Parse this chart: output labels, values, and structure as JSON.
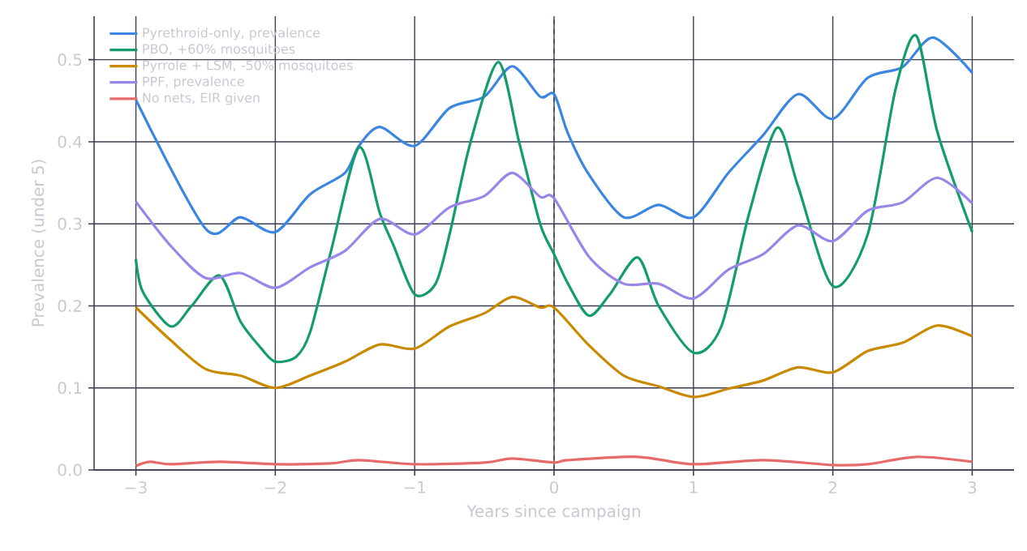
{
  "chart_data": {
    "type": "line",
    "xlabel": "Years since campaign",
    "ylabel": "Prevalence (under 5)",
    "xlim": [
      -3.3,
      3.3
    ],
    "ylim": [
      0,
      0.553
    ],
    "xticks": [
      {
        "value": -3,
        "label": "−3"
      },
      {
        "value": -2,
        "label": "−2"
      },
      {
        "value": -1,
        "label": "−1"
      },
      0,
      1,
      2,
      3
    ],
    "yticks": [
      {
        "value": 0,
        "label": "0.0"
      },
      0.1,
      0.2,
      0.3,
      0.4,
      0.5
    ],
    "grid": true,
    "legend": "top left",
    "line_style": "solid",
    "marker": "none",
    "ref_lines": [
      {
        "axis": "x",
        "value": 0,
        "color": "#3b3f50",
        "line_style": "dashed"
      }
    ],
    "series": [
      {
        "name": "Pyrethroid-only, prevalence",
        "color": "#3a86e0",
        "x": [
          -3,
          -2.5,
          -2.25,
          -2,
          -1.75,
          -1.5,
          -1.4,
          -1.25,
          -1,
          -0.75,
          -0.5,
          -0.3,
          -0.1,
          0,
          0.1,
          0.25,
          0.5,
          0.75,
          1,
          1.25,
          1.5,
          1.75,
          2,
          2.25,
          2.5,
          2.72,
          3
        ],
        "values": [
          0.451,
          0.294,
          0.308,
          0.29,
          0.336,
          0.362,
          0.395,
          0.418,
          0.395,
          0.441,
          0.455,
          0.492,
          0.455,
          0.458,
          0.41,
          0.36,
          0.308,
          0.323,
          0.308,
          0.362,
          0.408,
          0.458,
          0.428,
          0.478,
          0.491,
          0.527,
          0.484
        ]
      },
      {
        "name": "PBO, +60% mosquitoes",
        "color": "#149c6c",
        "x": [
          -3,
          -2.95,
          -2.75,
          -2.6,
          -2.4,
          -2.25,
          -2.1,
          -2,
          -1.85,
          -1.75,
          -1.6,
          -1.4,
          -1.25,
          -1.15,
          -1,
          -0.85,
          -0.75,
          -0.6,
          -0.4,
          -0.25,
          -0.1,
          0,
          0.1,
          0.25,
          0.4,
          0.6,
          0.75,
          1,
          1.2,
          1.4,
          1.6,
          1.75,
          2,
          2.25,
          2.45,
          2.6,
          2.75,
          3
        ],
        "values": [
          0.257,
          0.217,
          0.175,
          0.2,
          0.237,
          0.181,
          0.148,
          0.132,
          0.138,
          0.168,
          0.267,
          0.393,
          0.313,
          0.273,
          0.214,
          0.227,
          0.287,
          0.399,
          0.497,
          0.399,
          0.3,
          0.263,
          0.227,
          0.188,
          0.214,
          0.259,
          0.2,
          0.143,
          0.175,
          0.313,
          0.417,
          0.346,
          0.224,
          0.287,
          0.464,
          0.529,
          0.412,
          0.29
        ]
      },
      {
        "name": "Pyrrole + LSM, -50% mosquitoes",
        "color": "#c98a00",
        "x": [
          -3,
          -2.75,
          -2.5,
          -2.25,
          -2,
          -1.75,
          -1.5,
          -1.25,
          -1,
          -0.75,
          -0.5,
          -0.3,
          -0.1,
          0,
          0.25,
          0.5,
          0.75,
          1,
          1.25,
          1.5,
          1.75,
          2,
          2.25,
          2.5,
          2.75,
          3
        ],
        "values": [
          0.198,
          0.158,
          0.123,
          0.115,
          0.1,
          0.115,
          0.132,
          0.153,
          0.148,
          0.175,
          0.191,
          0.211,
          0.198,
          0.198,
          0.152,
          0.115,
          0.102,
          0.089,
          0.099,
          0.109,
          0.125,
          0.119,
          0.145,
          0.155,
          0.176,
          0.163
        ]
      },
      {
        "name": "PPF, prevalence",
        "color": "#9a86e8",
        "x": [
          -3,
          -2.75,
          -2.5,
          -2.25,
          -2,
          -1.75,
          -1.5,
          -1.25,
          -1,
          -0.75,
          -0.5,
          -0.3,
          -0.1,
          0,
          0.25,
          0.5,
          0.75,
          1,
          1.25,
          1.5,
          1.75,
          2,
          2.25,
          2.5,
          2.75,
          3
        ],
        "values": [
          0.327,
          0.273,
          0.234,
          0.24,
          0.222,
          0.247,
          0.267,
          0.306,
          0.287,
          0.32,
          0.334,
          0.362,
          0.333,
          0.331,
          0.26,
          0.227,
          0.227,
          0.209,
          0.244,
          0.263,
          0.298,
          0.279,
          0.316,
          0.326,
          0.356,
          0.325
        ]
      },
      {
        "name": "No nets, EIR given",
        "color": "#e76a6a",
        "x": [
          -3,
          -2.9,
          -2.75,
          -2.4,
          -2,
          -1.6,
          -1.4,
          -1,
          -0.5,
          -0.3,
          0,
          0.1,
          0.6,
          1,
          1.5,
          2,
          2.25,
          2.6,
          3
        ],
        "values": [
          0.005,
          0.01,
          0.007,
          0.01,
          0.007,
          0.008,
          0.012,
          0.007,
          0.009,
          0.014,
          0.009,
          0.012,
          0.016,
          0.007,
          0.012,
          0.006,
          0.007,
          0.016,
          0.01
        ]
      }
    ]
  }
}
